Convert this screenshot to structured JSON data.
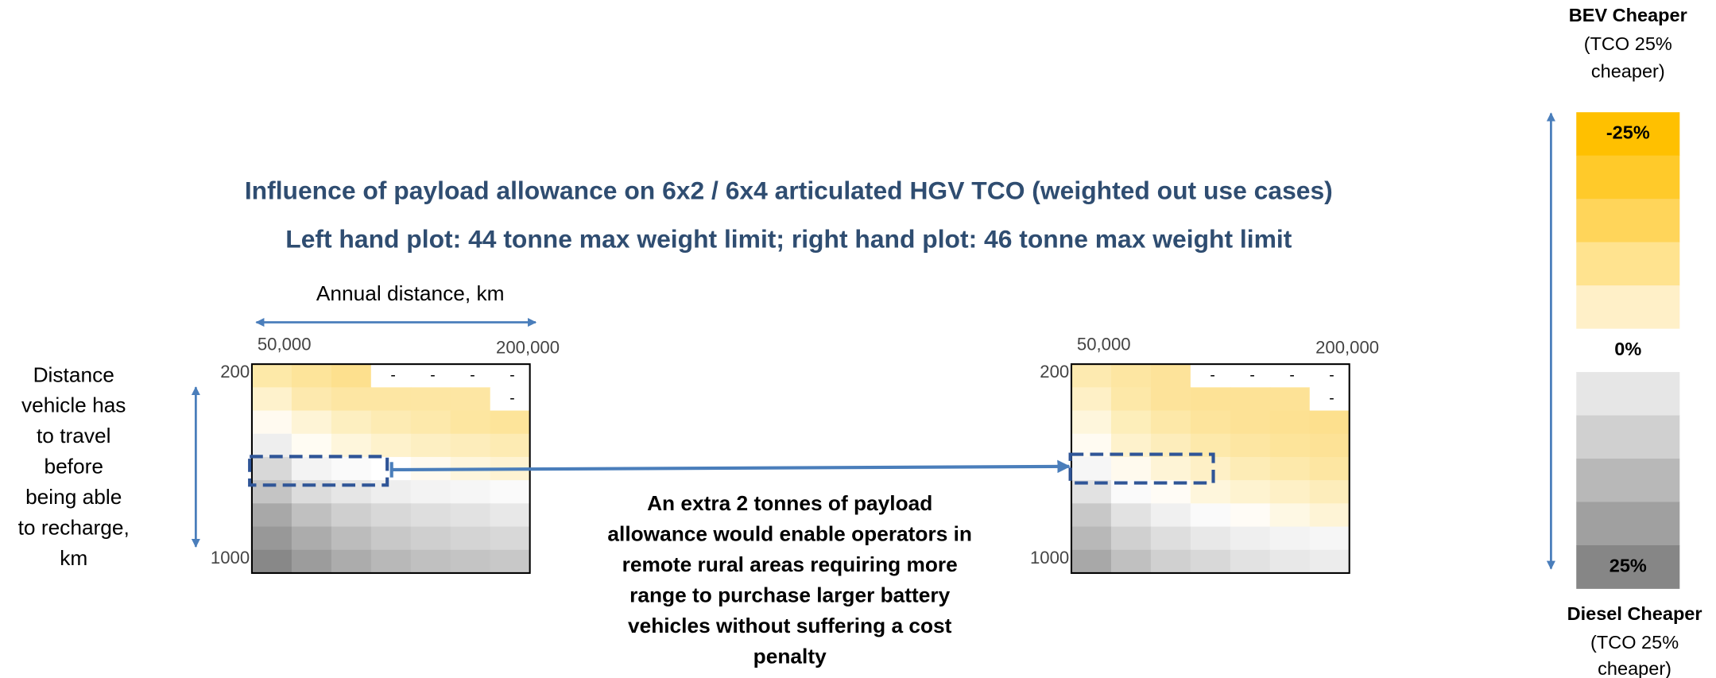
{
  "title": "Influence of payload allowance on 6x2 / 6x4 articulated HGV TCO (weighted out use cases)",
  "subtitle": "Left hand plot: 44 tonne max weight limit; right hand plot: 46 tonne max weight limit",
  "x_axis_label": "Annual distance, km",
  "y_axis_label": [
    "Distance",
    "vehicle has",
    "to travel",
    "before",
    "being able",
    "to recharge,",
    "km"
  ],
  "plots": [
    {
      "x_start": "50,000",
      "x_end": "200,000",
      "y_start": "200",
      "y_end": "1000",
      "cells": [
        [
          "#fde9a8",
          "#fde49a",
          "#fde08e",
          {
            "color": "#ffffff",
            "label": "-"
          },
          {
            "color": "#ffffff",
            "label": "-"
          },
          {
            "color": "#ffffff",
            "label": "-"
          },
          {
            "color": "#ffffff",
            "label": "-"
          }
        ],
        [
          "#fef2cc",
          "#fde9ae",
          "#fde6a3",
          "#fde6a3",
          "#fde6a3",
          "#fde6a3",
          {
            "color": "#ffffff",
            "label": "-"
          }
        ],
        [
          "#fffaf0",
          "#fef4d6",
          "#fdefc0",
          "#fdebb3",
          "#fde9ab",
          "#fde6a0",
          "#fde49a"
        ],
        [
          "#eeeeee",
          "#fffcf3",
          "#fef6dc",
          "#fef2cc",
          "#fdefc2",
          "#fdedbb",
          "#fdebb3"
        ],
        [
          "#d8d8d8",
          "#f3f3f3",
          "#fafafa",
          "#ffffff",
          "#fffaee",
          "#fef6dc",
          "#fef3d2"
        ],
        [
          "#c4c4c4",
          "#dcdcdc",
          "#e6e6e6",
          "#eeeeee",
          "#f3f3f3",
          "#f6f6f6",
          "#fafafa"
        ],
        [
          "#a8a8a8",
          "#c0c0c0",
          "#cfcfcf",
          "#d8d8d8",
          "#dedede",
          "#e2e2e2",
          "#e8e8e8"
        ],
        [
          "#989898",
          "#acacac",
          "#bcbcbc",
          "#c8c8c8",
          "#cfcfcf",
          "#d4d4d4",
          "#d8d8d8"
        ],
        [
          "#888888",
          "#9c9c9c",
          "#acacac",
          "#b8b8b8",
          "#c0c0c0",
          "#c4c4c4",
          "#c8c8c8"
        ]
      ]
    },
    {
      "x_start": "50,000",
      "x_end": "200,000",
      "y_start": "200",
      "y_end": "1000",
      "cells": [
        [
          "#fdeab0",
          "#fde6a2",
          "#fde39a",
          {
            "color": "#ffffff",
            "label": "-"
          },
          {
            "color": "#ffffff",
            "label": "-"
          },
          {
            "color": "#ffffff",
            "label": "-"
          },
          {
            "color": "#ffffff",
            "label": "-"
          }
        ],
        [
          "#fef0c6",
          "#fde8a8",
          "#fde39a",
          "#fde296",
          "#fde296",
          "#fde296",
          {
            "color": "#ffffff",
            "label": "-"
          }
        ],
        [
          "#fef6dc",
          "#fdeeba",
          "#fde8a8",
          "#fde49c",
          "#fde296",
          "#fde192",
          "#fde08e"
        ],
        [
          "#fffbf2",
          "#fef2cc",
          "#fdedbb",
          "#fde9ab",
          "#fde6a2",
          "#fde49a",
          "#fde296"
        ],
        [
          "#f6f6f6",
          "#fffaee",
          "#fef4d6",
          "#fef0c6",
          "#fdecb6",
          "#fde9ab",
          "#fde6a2"
        ],
        [
          "#e2e2e2",
          "#fafafa",
          "#fffcf6",
          "#fef6dc",
          "#fef3d0",
          "#fef0c6",
          "#fdedbb"
        ],
        [
          "#c8c8c8",
          "#e2e2e2",
          "#f0f0f0",
          "#fafafa",
          "#fffcf6",
          "#fef8e4",
          "#fef4d6"
        ],
        [
          "#b8b8b8",
          "#d0d0d0",
          "#dedede",
          "#e8e8e8",
          "#efefef",
          "#f3f3f3",
          "#f6f6f6"
        ],
        [
          "#a8a8a8",
          "#c0c0c0",
          "#d0d0d0",
          "#d8d8d8",
          "#e2e2e2",
          "#e8e8e8",
          "#ececec"
        ]
      ]
    }
  ],
  "annotation": [
    "An extra 2 tonnes of payload",
    "allowance would enable operators in",
    "remote rural areas requiring more",
    "range to purchase larger battery",
    "vehicles without suffering a cost",
    "penalty"
  ],
  "legend": {
    "top_title": "BEV Cheaper",
    "top_note": [
      "(TCO 25%",
      "cheaper)"
    ],
    "segments": [
      {
        "color": "#ffc000",
        "label": "-25%"
      },
      {
        "color": "#ffca2a"
      },
      {
        "color": "#ffd55a"
      },
      {
        "color": "#ffe38f"
      },
      {
        "color": "#fff0c8"
      },
      {
        "color": "#ffffff",
        "label": "0%"
      },
      {
        "color": "#e6e6e6"
      },
      {
        "color": "#d0d0d0"
      },
      {
        "color": "#b8b8b8"
      },
      {
        "color": "#a0a0a0"
      },
      {
        "color": "#868686",
        "label": "25%"
      }
    ],
    "bottom_title": "Diesel Cheaper",
    "bottom_note": [
      "(TCO 25%",
      "cheaper)"
    ]
  }
}
